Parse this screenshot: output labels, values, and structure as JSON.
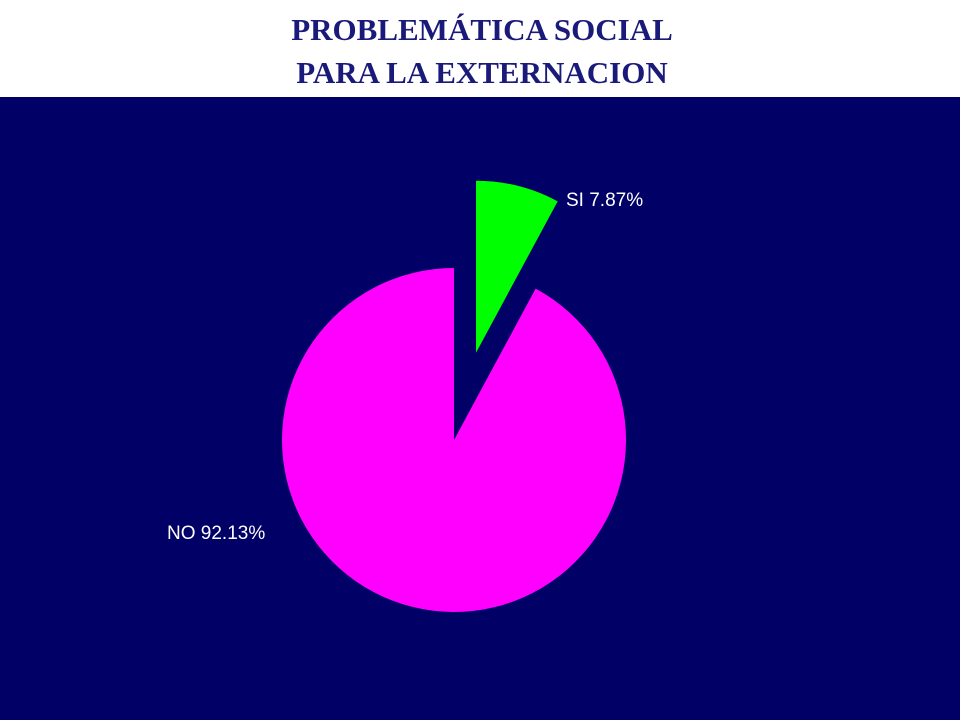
{
  "chart_data": {
    "type": "pie",
    "title": [
      "PROBLEMÁTICA SOCIAL",
      "PARA LA EXTERNACION"
    ],
    "categories": [
      "SI",
      "NO"
    ],
    "values": [
      7.87,
      92.13
    ],
    "value_labels": [
      "SI 7.87%",
      "NO 92.13%"
    ],
    "colors": [
      "#00ff00",
      "#ff00ff"
    ],
    "exploded": [
      true,
      false
    ]
  }
}
